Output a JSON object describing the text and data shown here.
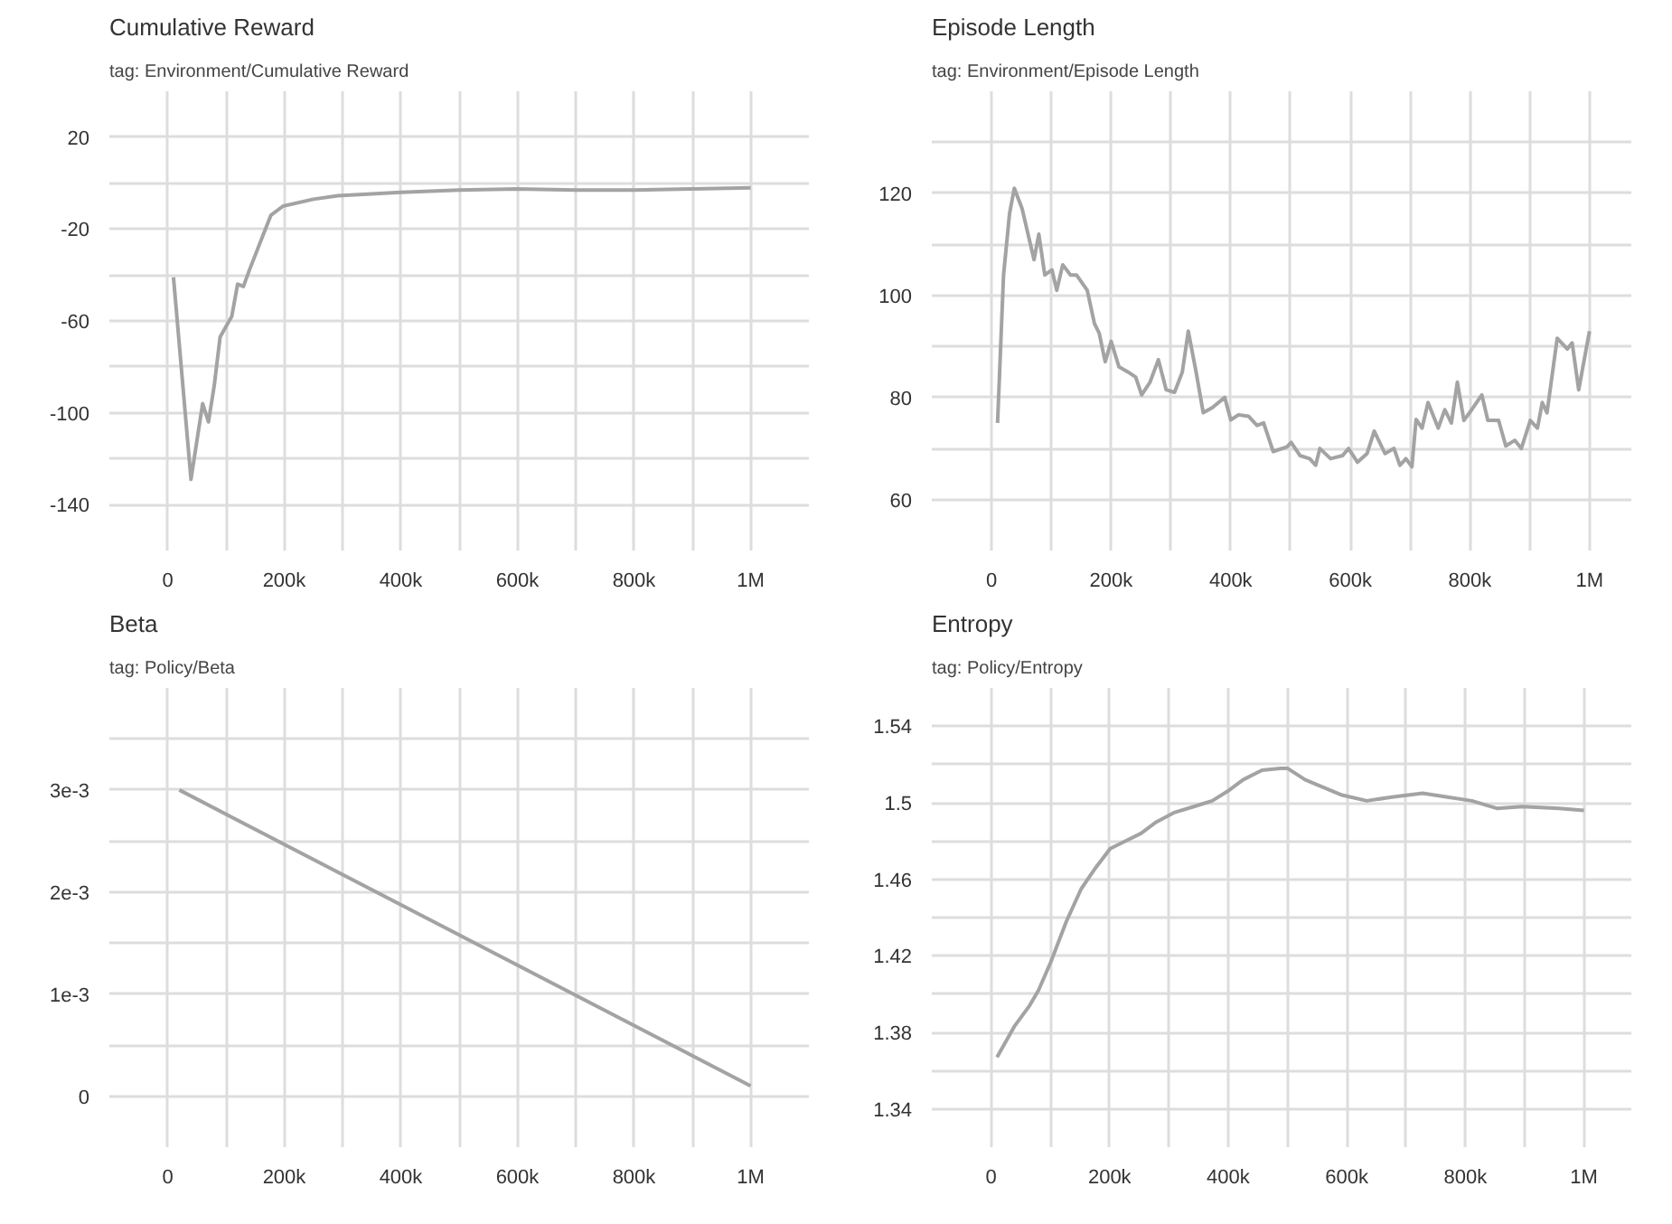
{
  "chart_data": [
    {
      "type": "line",
      "title": "Cumulative Reward",
      "subtitle": "tag: Environment/Cumulative Reward",
      "color": "#a3a3a3",
      "grid": true,
      "x": [
        10000,
        40000,
        60000,
        70000,
        80000,
        90000,
        110000,
        120000,
        130000,
        140000,
        177000,
        198000,
        250000,
        292000,
        400000,
        500000,
        600000,
        700000,
        800000,
        900000,
        1000000
      ],
      "values": [
        -41,
        -129,
        -96,
        -104,
        -88,
        -67,
        -58,
        -44,
        -45,
        -38,
        -14,
        -10,
        -7,
        -5.5,
        -4,
        -3,
        -2.5,
        -3,
        -3,
        -2.5,
        -2
      ],
      "xlim": [
        -100000,
        1100000
      ],
      "ylim": [
        -160,
        40
      ],
      "xticks": [
        0,
        {
          "value": 100000,
          "label": null
        },
        {
          "value": 200000,
          "label": "200k"
        },
        {
          "value": 300000,
          "label": null
        },
        {
          "value": 400000,
          "label": "400k"
        },
        {
          "value": 500000,
          "label": null
        },
        {
          "value": 600000,
          "label": "600k"
        },
        {
          "value": 700000,
          "label": null
        },
        {
          "value": 800000,
          "label": "800k"
        },
        {
          "value": 900000,
          "label": null
        },
        {
          "value": 1000000,
          "label": "1M"
        }
      ],
      "yticks": [
        -140,
        {
          "value": -120,
          "label": null
        },
        -100,
        {
          "value": -80,
          "label": null
        },
        -60,
        {
          "value": -40,
          "label": null
        },
        -20,
        {
          "value": 0,
          "label": null
        },
        20
      ]
    },
    {
      "type": "line",
      "title": "Episode Length",
      "subtitle": "tag: Environment/Episode Length",
      "color": "#a3a3a3",
      "grid": true,
      "x": [
        10000,
        20000,
        30000,
        38000,
        51000,
        63000,
        71000,
        79000,
        89000,
        101000,
        109000,
        119000,
        132000,
        142000,
        160000,
        172000,
        180000,
        190000,
        200000,
        213000,
        228000,
        241000,
        251000,
        265000,
        279000,
        292000,
        306000,
        319000,
        329000,
        342000,
        354000,
        369000,
        390000,
        400000,
        413000,
        430000,
        444000,
        455000,
        471000,
        494000,
        501000,
        516000,
        532000,
        542000,
        549000,
        567000,
        587000,
        597000,
        612000,
        628000,
        640000,
        658000,
        673000,
        683000,
        693000,
        703000,
        710000,
        720000,
        730000,
        747000,
        758000,
        769000,
        779000,
        790000,
        803000,
        820000,
        830000,
        848000,
        860000,
        875000,
        886000,
        901000,
        913000,
        921000,
        929000,
        946000,
        963000,
        971000,
        982000,
        1000000
      ],
      "values": [
        75,
        104,
        116,
        121,
        117,
        111,
        107,
        112,
        104,
        105,
        101,
        106,
        104,
        104,
        101,
        94.5,
        92.6,
        87,
        91,
        86,
        85,
        84,
        80.5,
        83,
        87.4,
        81.5,
        81,
        85,
        93,
        85,
        77,
        78,
        80,
        75.6,
        76.6,
        76.3,
        74.5,
        75,
        69.4,
        70.3,
        71.2,
        68.6,
        68,
        66.7,
        70,
        68,
        68.6,
        70,
        67.3,
        69,
        73.4,
        69,
        70,
        66.7,
        68,
        66.4,
        75.7,
        74,
        79,
        74,
        77.6,
        75,
        83,
        75.5,
        77.6,
        80.5,
        75.5,
        75.5,
        70.5,
        71.6,
        70,
        75.5,
        74,
        79,
        77,
        91.6,
        89.5,
        90.7,
        81.5,
        93
      ],
      "xlim": [
        -100000,
        1070000
      ],
      "ylim": [
        50,
        140
      ],
      "xticks": [
        0,
        {
          "value": 100000,
          "label": null
        },
        {
          "value": 200000,
          "label": "200k"
        },
        {
          "value": 300000,
          "label": null
        },
        {
          "value": 400000,
          "label": "400k"
        },
        {
          "value": 500000,
          "label": null
        },
        {
          "value": 600000,
          "label": "600k"
        },
        {
          "value": 700000,
          "label": null
        },
        {
          "value": 800000,
          "label": "800k"
        },
        {
          "value": 900000,
          "label": null
        },
        {
          "value": 1000000,
          "label": "1M"
        }
      ],
      "yticks": [
        60,
        {
          "value": 70,
          "label": null
        },
        80,
        {
          "value": 90,
          "label": null
        },
        100,
        {
          "value": 110,
          "label": null
        },
        120,
        {
          "value": 130,
          "label": null
        }
      ]
    },
    {
      "type": "line",
      "title": "Beta",
      "subtitle": "tag: Policy/Beta",
      "color": "#a3a3a3",
      "grid": true,
      "x": [
        20000,
        1000000
      ],
      "values": [
        0.003,
        0.0001
      ],
      "xlim": [
        -100000,
        1100000
      ],
      "ylim": [
        -0.0005,
        0.004
      ],
      "xticks": [
        0,
        {
          "value": 100000,
          "label": null
        },
        {
          "value": 200000,
          "label": "200k"
        },
        {
          "value": 300000,
          "label": null
        },
        {
          "value": 400000,
          "label": "400k"
        },
        {
          "value": 500000,
          "label": null
        },
        {
          "value": 600000,
          "label": "600k"
        },
        {
          "value": 700000,
          "label": null
        },
        {
          "value": 800000,
          "label": "800k"
        },
        {
          "value": 900000,
          "label": null
        },
        {
          "value": 1000000,
          "label": "1M"
        }
      ],
      "yticks": [
        0,
        {
          "value": 0.0005,
          "label": null
        },
        {
          "value": 0.001,
          "label": "1e-3"
        },
        {
          "value": 0.0015,
          "label": null
        },
        {
          "value": 0.002,
          "label": "2e-3"
        },
        {
          "value": 0.0025,
          "label": null
        },
        {
          "value": 0.003,
          "label": "3e-3"
        },
        {
          "value": 0.0035,
          "label": null
        }
      ]
    },
    {
      "type": "line",
      "title": "Entropy",
      "subtitle": "tag: Policy/Entropy",
      "color": "#a3a3a3",
      "grid": true,
      "x": [
        10000,
        39000,
        65000,
        80000,
        101000,
        127000,
        152000,
        174000,
        201000,
        227000,
        253000,
        279000,
        310000,
        342000,
        373000,
        399000,
        425000,
        457000,
        488000,
        500000,
        530000,
        561000,
        592000,
        634000,
        676000,
        728000,
        770000,
        811000,
        854000,
        896000,
        958000,
        1000000
      ],
      "values": [
        1.367,
        1.383,
        1.394,
        1.402,
        1.417,
        1.438,
        1.455,
        1.465,
        1.476,
        1.48,
        1.484,
        1.49,
        1.495,
        1.498,
        1.501,
        1.506,
        1.512,
        1.517,
        1.518,
        1.518,
        1.512,
        1.508,
        1.504,
        1.501,
        1.503,
        1.505,
        1.503,
        1.501,
        1.497,
        1.498,
        1.497,
        1.496
      ],
      "xlim": [
        -100000,
        1080000
      ],
      "ylim": [
        1.32,
        1.56
      ],
      "xticks": [
        0,
        {
          "value": 100000,
          "label": null
        },
        {
          "value": 200000,
          "label": "200k"
        },
        {
          "value": 300000,
          "label": null
        },
        {
          "value": 400000,
          "label": "400k"
        },
        {
          "value": 500000,
          "label": null
        },
        {
          "value": 600000,
          "label": "600k"
        },
        {
          "value": 700000,
          "label": null
        },
        {
          "value": 800000,
          "label": "800k"
        },
        {
          "value": 900000,
          "label": null
        },
        {
          "value": 1000000,
          "label": "1M"
        }
      ],
      "yticks": [
        1.34,
        {
          "value": 1.36,
          "label": null
        },
        1.38,
        {
          "value": 1.4,
          "label": null
        },
        1.42,
        {
          "value": 1.44,
          "label": null
        },
        1.46,
        {
          "value": 1.48,
          "label": null
        },
        1.5,
        {
          "value": 1.52,
          "label": null
        },
        1.54
      ]
    }
  ]
}
